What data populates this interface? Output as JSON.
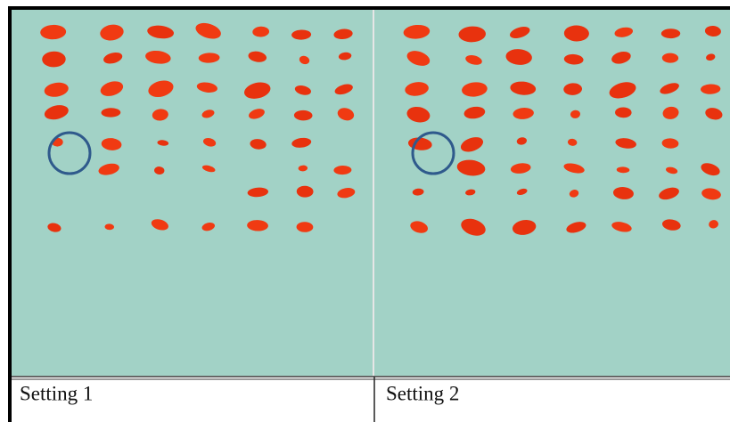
{
  "panels": [
    {
      "label": "Setting 1"
    },
    {
      "label": "Setting 2"
    }
  ]
}
